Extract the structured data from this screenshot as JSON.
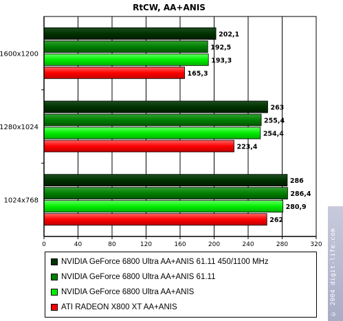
{
  "chart_data": {
    "type": "bar",
    "orientation": "horizontal",
    "title": "RtCW, AA+ANIS",
    "categories": [
      "1600x1200",
      "1280x1024",
      "1024x768"
    ],
    "series": [
      {
        "name": "NVIDIA GeForce 6800 Ultra AA+ANIS 61.11 450/1100 MHz",
        "color": "#003300",
        "values": [
          202.1,
          263,
          286
        ],
        "labels": [
          "202,1",
          "263",
          "286"
        ]
      },
      {
        "name": "NVIDIA GeForce 6800 Ultra AA+ANIS 61.11",
        "color": "#008000",
        "values": [
          192.5,
          255.4,
          286.4
        ],
        "labels": [
          "192,5",
          "255,4",
          "286,4"
        ]
      },
      {
        "name": "NVIDIA GeForce 6800 Ultra AA+ANIS",
        "color": "#00ee00",
        "values": [
          193.3,
          254.4,
          280.9
        ],
        "labels": [
          "193,3",
          "254,4",
          "280,9"
        ]
      },
      {
        "name": "ATI RADEON X800 XT AA+ANIS",
        "color": "#ff0000",
        "values": [
          165.3,
          223.4,
          262
        ],
        "labels": [
          "165,3",
          "223,4",
          "262"
        ]
      }
    ],
    "xlim": [
      0,
      320
    ],
    "xticks": [
      0,
      40,
      80,
      120,
      160,
      200,
      240,
      280,
      320
    ],
    "grid": true,
    "legend_position": "bottom"
  },
  "watermark": "© 2004 digit-life.com"
}
